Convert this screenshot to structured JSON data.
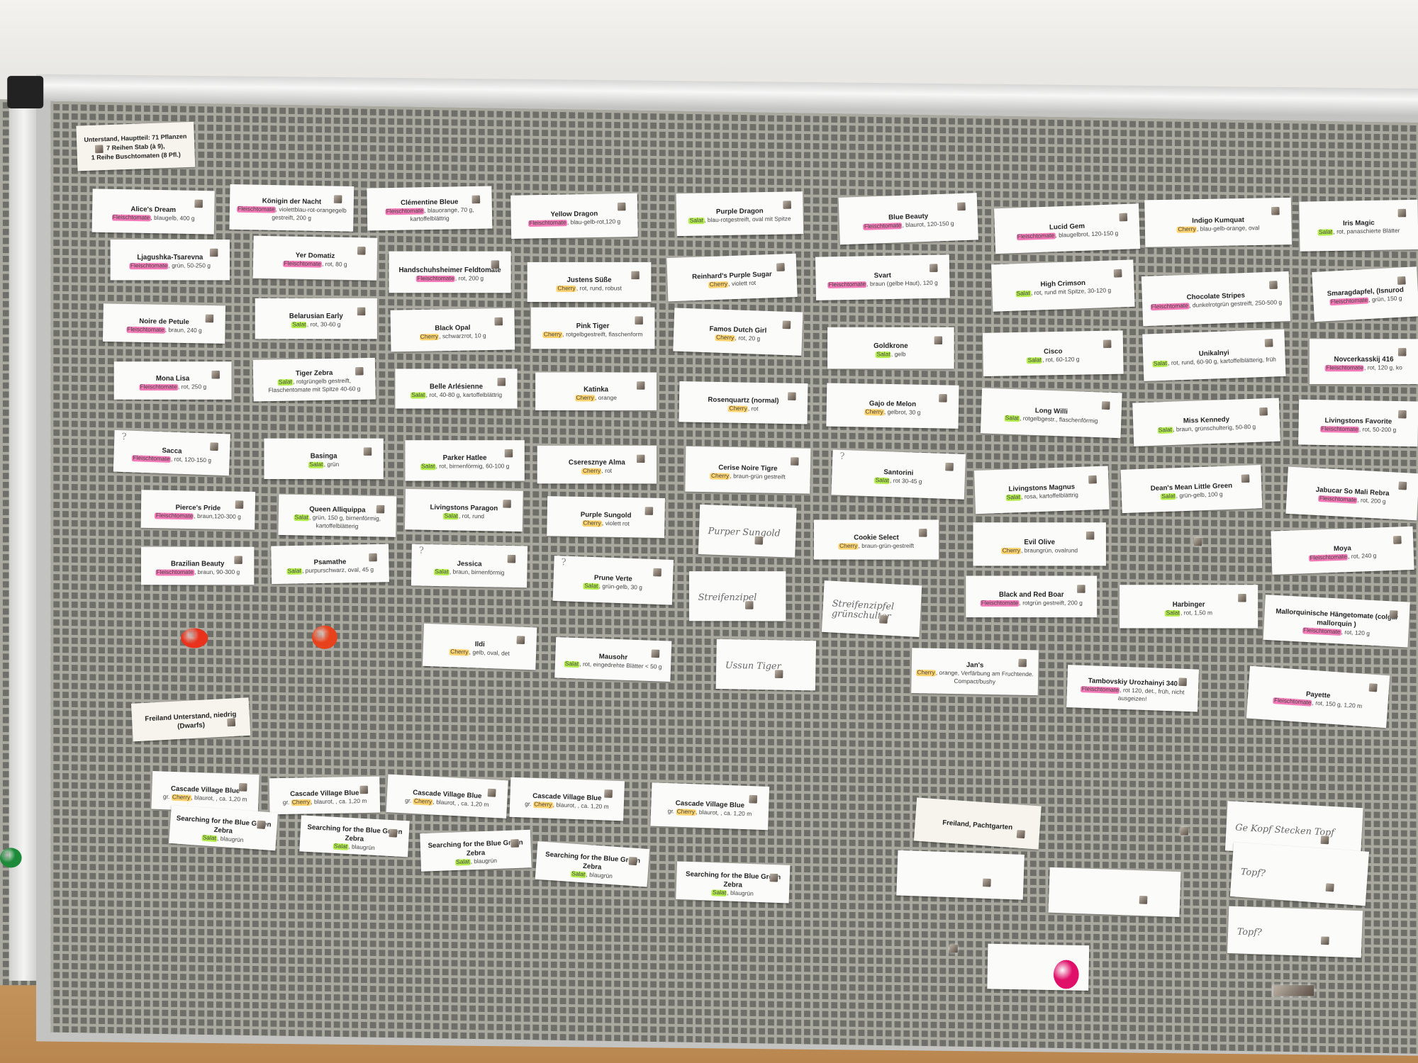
{
  "colors": {
    "Fleischtomate": "#f47ab8",
    "Salat": "#b5ee4e",
    "Cherry": "#ffd46e",
    "board": "#6e6f68",
    "frame": "#e8e8e6"
  },
  "header_note": {
    "lines": [
      "Unterstand, Hauptteil: 71 Pflanzen",
      "7 Reihen Stab (à 9),",
      "1 Reihe Buschtomaten (8 Pfl.)"
    ]
  },
  "section_notes": [
    "Freiland Unterstand, niedrig (Dwarfs)",
    "Freiland, Pachtgarten"
  ],
  "cards": [
    {
      "name": "Alice's Dream",
      "type": "Fleischtomate",
      "desc": ", blaugelb, 400 g"
    },
    {
      "name": "Ljagushka-Tsarevna",
      "type": "Fleischtomate",
      "desc": ", grün, 50-250 g"
    },
    {
      "name": "Noire de Petule",
      "type": "Fleischtomate",
      "desc": ", braun, 240 g"
    },
    {
      "name": "Mona Lisa",
      "type": "Fleischtomate",
      "desc": ", rot, 250 g"
    },
    {
      "name": "Sacca",
      "type": "Fleischtomate",
      "desc": ", rot, 120-150 g",
      "mark": "?"
    },
    {
      "name": "Pierce's Pride",
      "type": "Fleischtomate",
      "desc": ", braun,120-300 g"
    },
    {
      "name": "Brazilian Beauty",
      "type": "Fleischtomate",
      "desc": ", braun, 90-300 g"
    },
    {
      "name": "Königin der Nacht",
      "type": "Fleischtomate",
      "desc": ", violettblau-rot-orangegelb gestreift, 200 g"
    },
    {
      "name": "Yer Domatiz",
      "type": "Fleischtomate",
      "desc": ", rot, 80 g"
    },
    {
      "name": "Belarusian Early",
      "type": "Salat",
      "desc": ", rot, 30-60 g"
    },
    {
      "name": "Tiger Zebra",
      "type": "Salat",
      "desc": ", rotgrüngelb gestreift, Flaschentomate mit Spitze 40-60 g"
    },
    {
      "name": "Basinga",
      "type": "Salat",
      "desc": ", grün"
    },
    {
      "name": "Queen Alliquippa",
      "type": "Salat",
      "desc": ", grün, 150 g, birnenförmig, kartoffelblätterig"
    },
    {
      "name": "Psamathe",
      "type": "Salat",
      "desc": ", purpurschwarz, oval, 45 g"
    },
    {
      "name": "Clémentine Bleue",
      "type": "Fleischtomate",
      "desc": ", blauorange, 70 g, kartoffelblättrig"
    },
    {
      "name": "Handschuhsheimer Feldtomate",
      "type": "Fleischtomate",
      "desc": ", rot, 200 g"
    },
    {
      "name": "Black Opal",
      "type": "Cherry",
      "desc": ", schwarzrot, 10 g"
    },
    {
      "name": "Belle Arlésienne",
      "type": "Salat",
      "desc": ", rot, 40-80 g, kartoffelblättrig"
    },
    {
      "name": "Parker Hatlee",
      "type": "Salat",
      "desc": ", rot, birnenförmig, 60-100 g"
    },
    {
      "name": "Livingstons Paragon",
      "type": "Salat",
      "desc": ", rot, rund"
    },
    {
      "name": "Jessica",
      "type": "Salat",
      "desc": ", braun, birnenförmig",
      "mark": "?"
    },
    {
      "name": "Ildi",
      "type": "Cherry",
      "desc": ", gelb, oval, det"
    },
    {
      "name": "Yellow Dragon",
      "type": "Fleischtomate",
      "desc": ", blau-gelb-rot,120 g"
    },
    {
      "name": "Justens Süße",
      "type": "Cherry",
      "desc": ", rot, rund, robust"
    },
    {
      "name": "Pink Tiger",
      "type": "Cherry",
      "desc": ", rotgelbgestreift, flaschenform"
    },
    {
      "name": "Katinka",
      "type": "Cherry",
      "desc": ", orange"
    },
    {
      "name": "Cseresznye Alma",
      "type": "Cherry",
      "desc": ", rot"
    },
    {
      "name": "Purple Sungold",
      "type": "Cherry",
      "desc": ", violett rot"
    },
    {
      "name": "Prune Verte",
      "type": "Salat",
      "desc": ", grün-gelb, 30 g",
      "mark": "?"
    },
    {
      "name": "Mausohr",
      "type": "Salat",
      "desc": ", rot, eingedrehte Blätter < 50 g"
    },
    {
      "name": "Purple Dragon",
      "type": "Salat",
      "desc": ", blau-rotgestreift, oval mit Spitze"
    },
    {
      "name": "Reinhard's Purple Sugar",
      "type": "Cherry",
      "desc": ", violett rot"
    },
    {
      "name": "Famos Dutch Girl",
      "type": "Cherry",
      "desc": ", rot, 20 g"
    },
    {
      "name": "Rosenquartz (normal)",
      "type": "Cherry",
      "desc": ", rot"
    },
    {
      "name": "Cerise Noire Tigre",
      "type": "Cherry",
      "desc": ", braun-grün gestreift"
    },
    {
      "name": "Blue Beauty",
      "type": "Fleischtomate",
      "desc": ", blaurot, 120-150 g"
    },
    {
      "name": "Svart",
      "type": "Fleischtomate",
      "desc": ", braun (gelbe Haut), 120 g"
    },
    {
      "name": "Goldkrone",
      "type": "Salat",
      "desc": ", gelb"
    },
    {
      "name": "Gajo de Melon",
      "type": "Cherry",
      "desc": ", gelbrot, 30 g"
    },
    {
      "name": "Santorini",
      "type": "Salat",
      "desc": ", rot 30-45 g",
      "mark": "?"
    },
    {
      "name": "Cookie Select",
      "type": "Cherry",
      "desc": ", braun-grün-gestreift"
    },
    {
      "name": "Jan's",
      "type": "Cherry",
      "desc": ", orange, Verfärbung am Fruchtende. Compact/bushy"
    },
    {
      "name": "Lucid Gem",
      "type": "Fleischtomate",
      "desc": ", blaugelbrot, 120-150 g"
    },
    {
      "name": "High Crimson",
      "type": "Salat",
      "desc": ", rot, rund mit Spitze, 30-120 g"
    },
    {
      "name": "Cisco",
      "type": "Salat",
      "desc": ", rot, 60-120 g"
    },
    {
      "name": "Long Willi",
      "type": "Salat",
      "desc": ", rotgelbgestr., flaschenförmig"
    },
    {
      "name": "Livingstons Magnus",
      "type": "Salat",
      "desc": ", rosa, kartoffelblättrig"
    },
    {
      "name": "Evil Olive",
      "type": "Cherry",
      "desc": ", braungrün, ovalrund"
    },
    {
      "name": "Black and Red Boar",
      "type": "Fleischtomate",
      "desc": ", rotgrün gestreift, 200 g"
    },
    {
      "name": "Tambovskiy Urozhainyi 340",
      "type": "Fleischtomate",
      "desc": ", rot 120, det., früh, nicht ausgeizen!"
    },
    {
      "name": "Indigo Kumquat",
      "type": "Cherry",
      "desc": ", blau-gelb-orange, oval"
    },
    {
      "name": "Chocolate Stripes",
      "type": "Fleischtomate",
      "desc": ", dunkelrotgrün gestreift, 250-500 g"
    },
    {
      "name": "Unikalnyi",
      "type": "Salat",
      "desc": ", rot, rund, 60-90 g, kartoffelblätterig, früh"
    },
    {
      "name": "Miss Kennedy",
      "type": "Salat",
      "desc": ", braun, grünschulterig, 50-80 g"
    },
    {
      "name": "Dean's Mean Little Green",
      "type": "Salat",
      "desc": ", grün-gelb, 100 g"
    },
    {
      "name": "Harbinger",
      "type": "Salat",
      "desc": ", rot, 1,50 m"
    },
    {
      "name": "Iris Magic",
      "type": "Salat",
      "desc": ", rot, panaschierte Blätter"
    },
    {
      "name": "Smaragdapfel, (Isnurod",
      "type": "Fleischtomate",
      "desc": ", grün, 150 g"
    },
    {
      "name": "Novcerkasskij 416",
      "type": "Fleischtomate",
      "desc": ", rot, 120 g, ko"
    },
    {
      "name": "Livingstons Favorite",
      "type": "Fleischtomate",
      "desc": ", rot, 50-200 g"
    },
    {
      "name": "Jabucar So Mali Rebra",
      "type": "Fleischtomate",
      "desc": ", rot, 200 g"
    },
    {
      "name": "Moya",
      "type": "Fleischtomate",
      "desc": ", rot, 240 g"
    },
    {
      "name": "Mallorquinische Hängetomate (colgar mallorquin )",
      "type": "Fleischtomate",
      "desc": ", rot, 120 g"
    },
    {
      "name": "Payette",
      "type": "Fleischtomate",
      "desc": ", rot, 150 g, 1,20 m"
    },
    {
      "name": "Cascade Village Blue",
      "prefix": "gr. ",
      "type": "Cherry",
      "desc": ", blaurot, , ca. 1,20 m"
    },
    {
      "name": "Cascade Village Blue",
      "prefix": "gr. ",
      "type": "Cherry",
      "desc": ", blaurot, , ca. 1,20 m"
    },
    {
      "name": "Cascade Village Blue",
      "prefix": "gr. ",
      "type": "Cherry",
      "desc": ", blaurot, , ca. 1,20 m"
    },
    {
      "name": "Cascade Village Blue",
      "prefix": "gr. ",
      "type": "Cherry",
      "desc": ", blaurot, , ca. 1,20 m"
    },
    {
      "name": "Cascade Village Blue",
      "prefix": "gr. ",
      "type": "Cherry",
      "desc": ", blaurot, , ca. 1,20 m"
    },
    {
      "name": "Searching for the Blue Green Zebra",
      "type": "Salat",
      "desc": ", blaugrün"
    },
    {
      "name": "Searching for the Blue Green Zebra",
      "type": "Salat",
      "desc": ", blaugrün"
    },
    {
      "name": "Searching for the Blue Green Zebra",
      "type": "Salat",
      "desc": ", blaugrün"
    },
    {
      "name": "Searching for the Blue Green Zebra",
      "type": "Salat",
      "desc": ", blaugrün"
    },
    {
      "name": "Searching for the Blue Green Zebra",
      "type": "Salat",
      "desc": ", blaugrün"
    }
  ],
  "handwritten": [
    "Purper Sungold",
    "Streifenzipel",
    "Ussun Tiger",
    "Streifenzipfel grünschulter",
    "Ge Kopf Stecken Topf",
    "Topf?",
    "Topf?",
    "",
    "",
    ""
  ]
}
